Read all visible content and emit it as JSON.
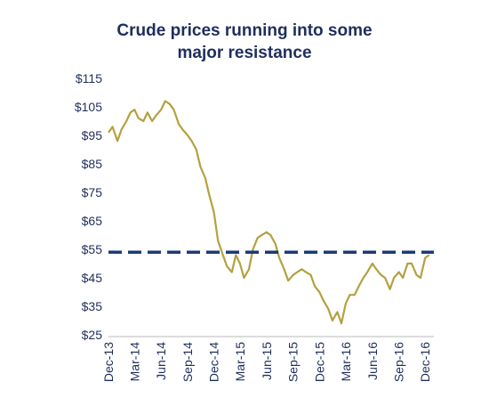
{
  "title_lines": [
    "Crude prices running into some",
    "major resistance"
  ],
  "colors": {
    "title": "#1f2f5c",
    "axis_text": "#1f2f5c",
    "price_line": "#b5a03f",
    "resistance_line": "#1c3a78",
    "axis_line": "#b8b8b8"
  },
  "chart_data": {
    "type": "line",
    "title": "Crude prices running into some major resistance",
    "xlabel": "",
    "ylabel": "",
    "y_ticks": [
      "$25",
      "$35",
      "$45",
      "$55",
      "$65",
      "$75",
      "$85",
      "$95",
      "$105",
      "$115"
    ],
    "ylim": [
      25,
      115
    ],
    "x_ticks": [
      "Dec-13",
      "Mar-14",
      "Jun-14",
      "Sep-14",
      "Dec-14",
      "Mar-15",
      "Jun-15",
      "Sep-15",
      "Dec-15",
      "Mar-16",
      "Jun-16",
      "Sep-16",
      "Dec-16"
    ],
    "x_tick_dates": [
      "2013-12-01",
      "2014-03-01",
      "2014-06-01",
      "2014-09-01",
      "2014-12-01",
      "2015-03-01",
      "2015-06-01",
      "2015-09-01",
      "2015-12-01",
      "2016-03-01",
      "2016-06-01",
      "2016-09-01",
      "2016-12-01"
    ],
    "grid": false,
    "series": [
      {
        "style": "solid",
        "x": [
          "2013-12-01",
          "2013-12-15",
          "2014-01-01",
          "2014-01-15",
          "2014-02-01",
          "2014-02-15",
          "2014-03-01",
          "2014-03-15",
          "2014-04-01",
          "2014-04-15",
          "2014-05-01",
          "2014-05-15",
          "2014-06-01",
          "2014-06-15",
          "2014-07-01",
          "2014-07-15",
          "2014-08-01",
          "2014-08-15",
          "2014-09-01",
          "2014-09-15",
          "2014-10-01",
          "2014-10-15",
          "2014-11-01",
          "2014-11-15",
          "2014-12-01",
          "2014-12-15",
          "2015-01-01",
          "2015-01-15",
          "2015-02-01",
          "2015-02-15",
          "2015-03-01",
          "2015-03-15",
          "2015-04-01",
          "2015-04-15",
          "2015-05-01",
          "2015-05-15",
          "2015-06-01",
          "2015-06-15",
          "2015-07-01",
          "2015-07-15",
          "2015-08-01",
          "2015-08-15",
          "2015-09-01",
          "2015-09-15",
          "2015-10-01",
          "2015-10-15",
          "2015-11-01",
          "2015-11-15",
          "2015-12-01",
          "2015-12-15",
          "2016-01-01",
          "2016-01-15",
          "2016-02-01",
          "2016-02-15",
          "2016-03-01",
          "2016-03-15",
          "2016-04-01",
          "2016-04-15",
          "2016-05-01",
          "2016-05-15",
          "2016-06-01",
          "2016-06-15",
          "2016-07-01",
          "2016-07-15",
          "2016-08-01",
          "2016-08-15",
          "2016-09-01",
          "2016-09-15",
          "2016-10-01",
          "2016-10-15",
          "2016-11-01",
          "2016-11-15",
          "2016-12-01",
          "2016-12-15"
        ],
        "values": [
          96,
          98,
          93,
          97,
          100,
          103,
          104,
          101,
          100,
          103,
          100,
          102,
          104,
          107,
          106,
          104,
          99,
          97,
          95,
          93,
          90,
          84,
          80,
          74,
          68,
          58,
          53,
          49,
          47,
          53,
          50,
          45,
          48,
          55,
          59,
          60,
          61,
          60,
          57,
          52,
          48,
          44,
          46,
          47,
          48,
          47,
          46,
          42,
          40,
          37,
          34,
          30,
          33,
          29,
          36,
          39,
          39,
          42,
          45,
          47,
          50,
          48,
          46,
          45,
          41,
          45,
          47,
          45,
          50,
          50,
          46,
          45,
          52,
          53
        ]
      },
      {
        "style": "dashed",
        "x": [
          "2013-12-01",
          "2016-12-31"
        ],
        "values": [
          54,
          54
        ]
      }
    ]
  }
}
